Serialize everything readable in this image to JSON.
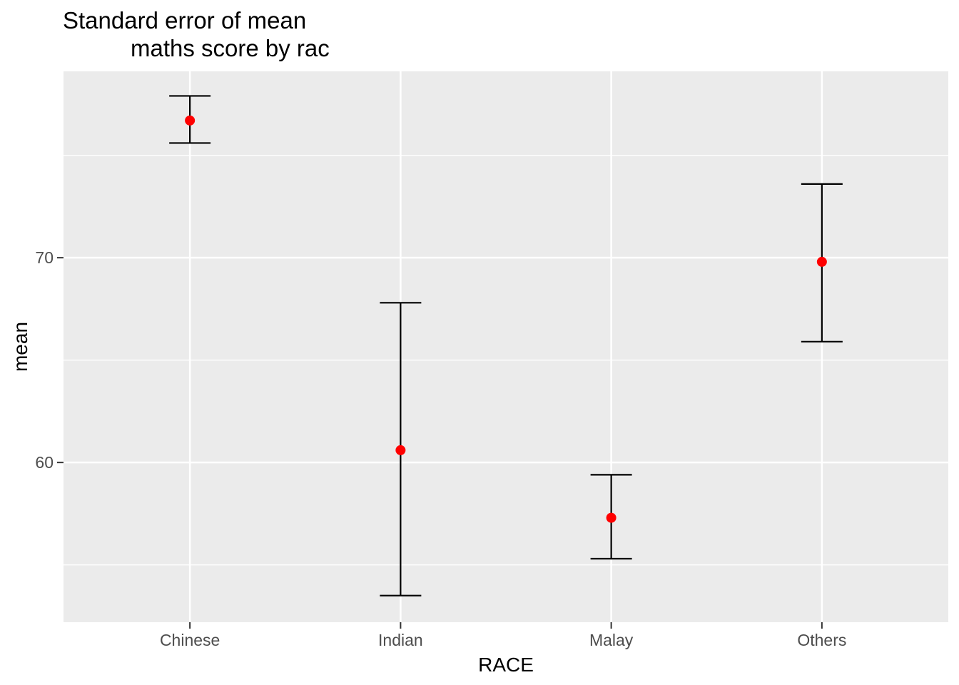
{
  "chart_data": {
    "type": "scatter",
    "subtype": "point-with-error-bars",
    "title": "Standard error of mean maths score by rac",
    "title_lines": [
      "Standard error of mean",
      "maths score by rac"
    ],
    "xlabel": "RACE",
    "ylabel": "mean",
    "categories": [
      "Chinese",
      "Indian",
      "Malay",
      "Others"
    ],
    "series": [
      {
        "name": "mean",
        "values": [
          76.7,
          60.6,
          57.3,
          69.8
        ]
      },
      {
        "name": "ymin",
        "values": [
          75.6,
          53.5,
          55.3,
          65.9
        ]
      },
      {
        "name": "ymax",
        "values": [
          77.9,
          67.8,
          59.4,
          73.6
        ]
      }
    ],
    "y_major_ticks": [
      60,
      70
    ],
    "y_tick_labels": [
      "60",
      "70"
    ],
    "y_minor_gridlines": [
      55,
      65,
      75
    ],
    "ylim": [
      52.2,
      79.1
    ],
    "grid": true,
    "legend": false,
    "colors": {
      "point": "#FF0000",
      "errorbar": "#000000",
      "panel_background": "#EBEBEB",
      "gridline": "#FFFFFF",
      "tick_mark": "#333333",
      "tick_label": "#4D4D4D",
      "axis_title": "#000000",
      "title": "#000000",
      "figure_background": "#FFFFFF"
    }
  }
}
